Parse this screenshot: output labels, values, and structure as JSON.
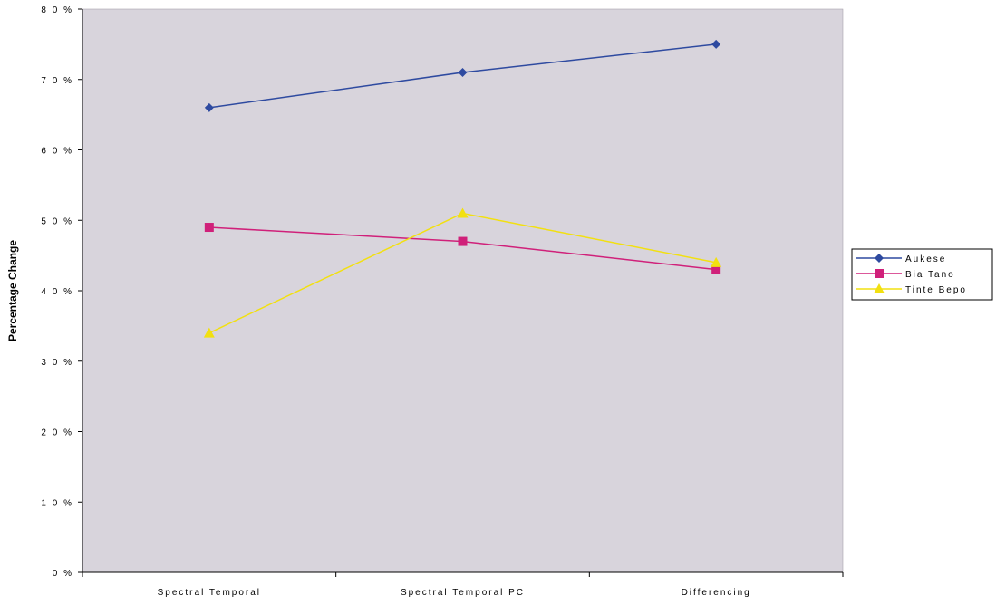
{
  "chart_data": {
    "type": "line",
    "title": "",
    "xlabel": "",
    "ylabel": "Percentage Change",
    "categories": [
      "Spectral Temporal",
      "Spectral Temporal PC",
      "Differencing"
    ],
    "ylim": [
      0,
      80
    ],
    "yticks": [
      0,
      10,
      20,
      30,
      40,
      50,
      60,
      70,
      80
    ],
    "ytick_labels": [
      "0 %",
      "1 0 %",
      "2 0 %",
      "3 0 %",
      "4 0 %",
      "5 0 %",
      "6 0 %",
      "7 0 %",
      "8 0 %"
    ],
    "grid": false,
    "legend_position": "right",
    "plot_background": "#d8d4dc",
    "series": [
      {
        "name": "Aukese",
        "values": [
          66,
          71,
          75
        ],
        "color": "#2e4aa0",
        "marker": "diamond"
      },
      {
        "name": "Bia Tano",
        "values": [
          49,
          47,
          43
        ],
        "color": "#d0207a",
        "marker": "square"
      },
      {
        "name": "Tinte Bepo",
        "values": [
          34,
          51,
          44
        ],
        "color": "#f2e010",
        "marker": "triangle"
      }
    ]
  }
}
